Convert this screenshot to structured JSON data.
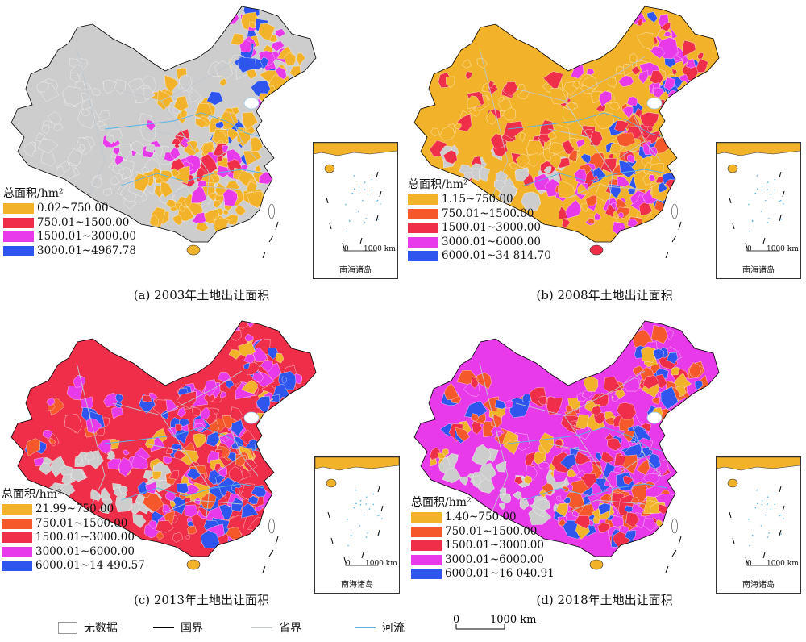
{
  "colors": {
    "no_data": "#cdcdcd",
    "class1": "#f2b32b",
    "class2": "#f5582a",
    "class3": "#ef2e4a",
    "class4": "#e83ae8",
    "class5": "#2e55ee",
    "national_border": "#000000",
    "provincial_border": "#bfc7cf",
    "river": "#5ab4e8"
  },
  "panels": [
    {
      "id": "a",
      "caption": "(a) 2003年土地出让面积",
      "legend_title": "总面积/hm²",
      "classes": [
        "0.02~750.00",
        "750.01~1500.00",
        "1500.01~3000.00",
        "3000.01~4967.78"
      ],
      "class_colors": [
        "class1",
        "class3",
        "class4",
        "class5"
      ],
      "dominant": "no_data"
    },
    {
      "id": "b",
      "caption": "(b) 2008年土地出让面积",
      "legend_title": "总面积/hm²",
      "classes": [
        "1.15~750.00",
        "750.01~1500.00",
        "1500.01~3000.00",
        "3000.01~6000.00",
        "6000.01~34 814.70"
      ],
      "class_colors": [
        "class1",
        "class2",
        "class3",
        "class4",
        "class5"
      ],
      "dominant": "class1"
    },
    {
      "id": "c",
      "caption": "(c) 2013年土地出让面积",
      "legend_title": "总面积/hm²",
      "classes": [
        "21.99~750.00",
        "750.01~1500.00",
        "1500.01~3000.00",
        "3000.01~6000.00",
        "6000.01~14 490.57"
      ],
      "class_colors": [
        "class1",
        "class2",
        "class3",
        "class4",
        "class5"
      ],
      "dominant": "class3"
    },
    {
      "id": "d",
      "caption": "(d) 2018年土地出让面积",
      "legend_title": "总面积/hm²",
      "classes": [
        "1.40~750.00",
        "750.01~1500.00",
        "1500.01~3000.00",
        "3000.01~6000.00",
        "6000.01~16 040.91"
      ],
      "class_colors": [
        "class1",
        "class2",
        "class3",
        "class4",
        "class5"
      ],
      "dominant": "class4"
    }
  ],
  "inset": {
    "title": "南海诸岛",
    "scale_zero": "0",
    "scale_end": "1000 km"
  },
  "bottom_legend": {
    "no_data": "无数据",
    "national_border": "国界",
    "provincial_border": "省界",
    "river": "河流",
    "scale_zero": "0",
    "scale_end": "1000 km"
  }
}
